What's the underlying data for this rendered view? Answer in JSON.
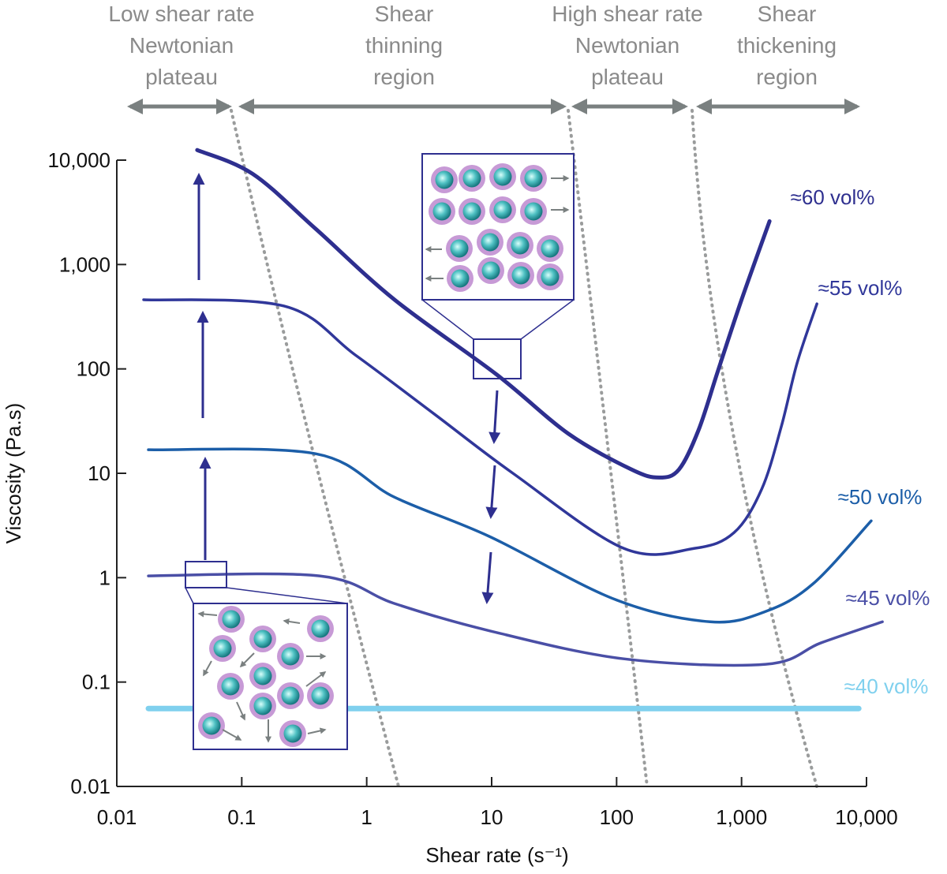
{
  "chart_data": {
    "type": "line",
    "x_label": "Shear rate (s⁻¹)",
    "y_label": "Viscosity (Pa.s)",
    "log_x": true,
    "log_y": true,
    "xlim": [
      0.01,
      10000
    ],
    "ylim": [
      0.01,
      10000
    ],
    "xticks": [
      0.01,
      0.1,
      1,
      10,
      100,
      {
        "value": 1000,
        "label": "1,000"
      },
      {
        "value": 10000,
        "label": "10,000"
      }
    ],
    "yticks": [
      0.01,
      0.1,
      1,
      10,
      100,
      {
        "value": 1000,
        "label": "1,000"
      },
      {
        "value": 10000,
        "label": "10,000"
      }
    ],
    "regions": [
      [
        "Low shear rate",
        "Newtonian",
        "plateau"
      ],
      [
        "Shear",
        "thinning",
        "region"
      ],
      [
        "High shear rate",
        "Newtonian",
        "plateau"
      ],
      [
        "Shear",
        "thickening",
        "region"
      ]
    ],
    "series": [
      {
        "name": "≈60 vol%",
        "color": "#2e2f8f",
        "width": 5,
        "x": [
          0.044,
          0.122,
          0.39,
          1.67,
          11,
          41,
          131,
          219,
          316,
          453,
          646,
          1000,
          1675
        ],
        "values": [
          12500,
          7400,
          2200,
          460,
          88,
          24,
          10.9,
          9.1,
          10.9,
          26,
          95,
          460,
          2600
        ]
      },
      {
        "name": "≈55 vol%",
        "color": "#30379a",
        "width": 3.5,
        "x": [
          0.0164,
          0.218,
          0.81,
          3.47,
          14.8,
          114,
          421,
          871,
          1450,
          2080,
          2790,
          4010
        ],
        "values": [
          460,
          400,
          136,
          37,
          10,
          1.91,
          1.91,
          2.7,
          7.05,
          28,
          115,
          420
        ]
      },
      {
        "name": "≈50 vol%",
        "color": "#1c5ea8",
        "width": 3.5,
        "x": [
          0.0179,
          0.39,
          1.67,
          9.6,
          98,
          562,
          1560,
          3730,
          10900
        ],
        "values": [
          16.8,
          15.4,
          5.9,
          2.48,
          0.616,
          0.378,
          0.475,
          0.873,
          3.5
        ]
      },
      {
        "name": "≈45 vol%",
        "color": "#4a4fa6",
        "width": 3.5,
        "x": [
          0.0179,
          0.42,
          1.67,
          9.6,
          114,
          1560,
          4310,
          13400
        ],
        "values": [
          1.04,
          1.04,
          0.565,
          0.31,
          0.167,
          0.148,
          0.237,
          0.378
        ]
      },
      {
        "name": "≈40 vol%",
        "color": "#7fd0ee",
        "width": 7,
        "x": [
          0.0179,
          8670
        ],
        "values": [
          0.0558,
          0.0558
        ]
      }
    ]
  }
}
